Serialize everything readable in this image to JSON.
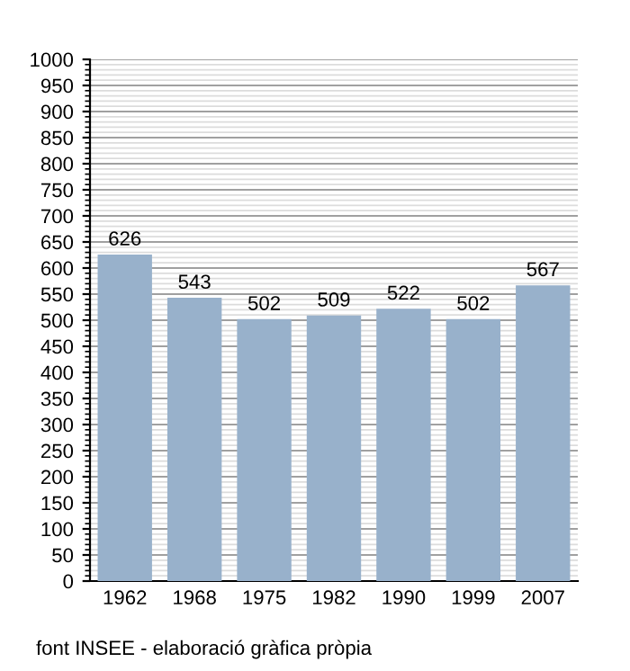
{
  "chart_data": {
    "type": "bar",
    "categories": [
      "1962",
      "1968",
      "1975",
      "1982",
      "1990",
      "1999",
      "2007"
    ],
    "values": [
      626,
      543,
      502,
      509,
      522,
      502,
      567
    ],
    "color": "#98b1cb",
    "data_labels": true,
    "ylim": [
      0,
      1000
    ],
    "yticks": [
      0,
      50,
      100,
      150,
      200,
      250,
      300,
      350,
      400,
      450,
      500,
      550,
      600,
      650,
      700,
      750,
      800,
      850,
      900,
      950,
      1000
    ],
    "grid": "y",
    "annotations": [
      "font INSEE - elaboració gràfica pròpia"
    ]
  }
}
